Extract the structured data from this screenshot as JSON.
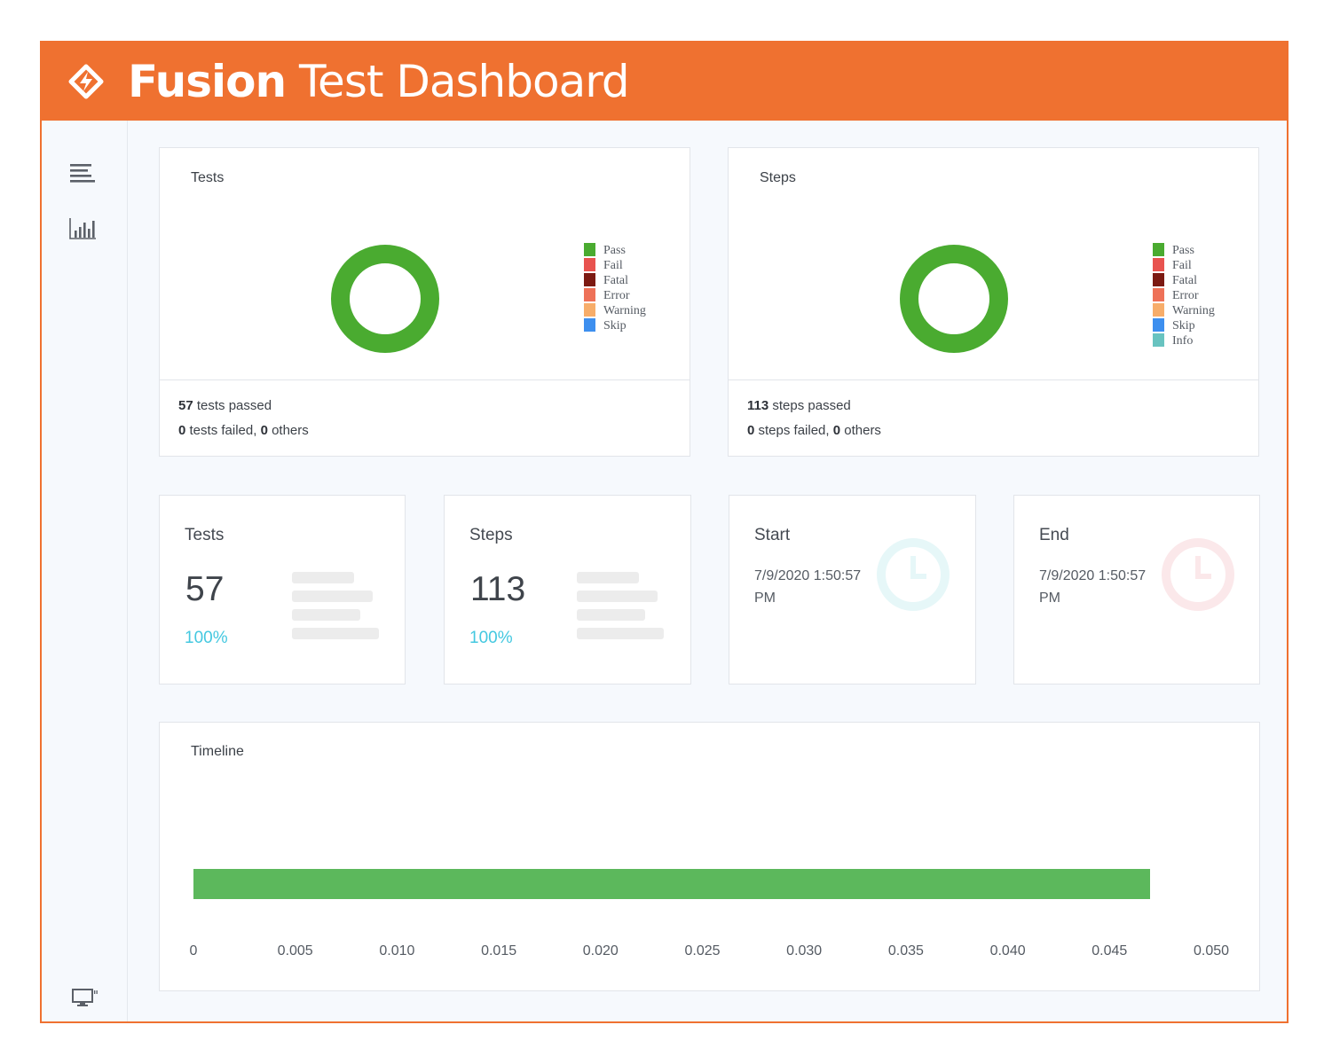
{
  "header": {
    "title_bold": "Fusion",
    "title_rest": "Test Dashboard"
  },
  "sidebar": {
    "icons": [
      "list-icon",
      "bar-chart-icon",
      "monitor-icon"
    ]
  },
  "tests_chart": {
    "title": "Tests",
    "legend": [
      {
        "label": "Pass",
        "color": "#4aab30"
      },
      {
        "label": "Fail",
        "color": "#e8534f"
      },
      {
        "label": "Fatal",
        "color": "#7c1a12"
      },
      {
        "label": "Error",
        "color": "#ee7158"
      },
      {
        "label": "Warning",
        "color": "#f7ad6a"
      },
      {
        "label": "Skip",
        "color": "#3d8fef"
      }
    ],
    "passed_count": "57",
    "passed_text": " tests passed",
    "failed_count": "0",
    "failed_text": " tests failed, ",
    "others_count": "0",
    "others_text": " others"
  },
  "steps_chart": {
    "title": "Steps",
    "legend": [
      {
        "label": "Pass",
        "color": "#4aab30"
      },
      {
        "label": "Fail",
        "color": "#e8534f"
      },
      {
        "label": "Fatal",
        "color": "#7c1a12"
      },
      {
        "label": "Error",
        "color": "#ee7158"
      },
      {
        "label": "Warning",
        "color": "#f7ad6a"
      },
      {
        "label": "Skip",
        "color": "#3d8fef"
      },
      {
        "label": "Info",
        "color": "#68c3c0"
      }
    ],
    "passed_count": "113",
    "passed_text": " steps passed",
    "failed_count": "0",
    "failed_text": " steps failed, ",
    "others_count": "0",
    "others_text": " others"
  },
  "stats": {
    "tests": {
      "label": "Tests",
      "value": "57",
      "percent": "100%"
    },
    "steps": {
      "label": "Steps",
      "value": "113",
      "percent": "100%"
    },
    "start": {
      "label": "Start",
      "value": "7/9/2020 1:50:57 PM",
      "clock_color": "#e6f7f8"
    },
    "end": {
      "label": "End",
      "value": "7/9/2020 1:50:57 PM",
      "clock_color": "#fbe8ea"
    }
  },
  "timeline": {
    "title": "Timeline",
    "ticks": [
      "0",
      "0.005",
      "0.010",
      "0.015",
      "0.020",
      "0.025",
      "0.030",
      "0.035",
      "0.040",
      "0.045",
      "0.050"
    ],
    "bar_start": 0,
    "bar_end": 0.047,
    "bar_color": "#5cb85c"
  },
  "chart_data": [
    {
      "type": "pie",
      "categories": [
        "Pass",
        "Fail",
        "Fatal",
        "Error",
        "Warning",
        "Skip"
      ],
      "values": [
        57,
        0,
        0,
        0,
        0,
        0
      ],
      "title": "Tests"
    },
    {
      "type": "pie",
      "categories": [
        "Pass",
        "Fail",
        "Fatal",
        "Error",
        "Warning",
        "Skip",
        "Info"
      ],
      "values": [
        113,
        0,
        0,
        0,
        0,
        0,
        0
      ],
      "title": "Steps"
    },
    {
      "type": "bar",
      "title": "Timeline",
      "x": [
        0,
        0.005,
        0.01,
        0.015,
        0.02,
        0.025,
        0.03,
        0.035,
        0.04,
        0.045,
        0.05
      ],
      "xlim": [
        0,
        0.05
      ],
      "bars": [
        {
          "start": 0,
          "end": 0.047
        }
      ]
    }
  ]
}
